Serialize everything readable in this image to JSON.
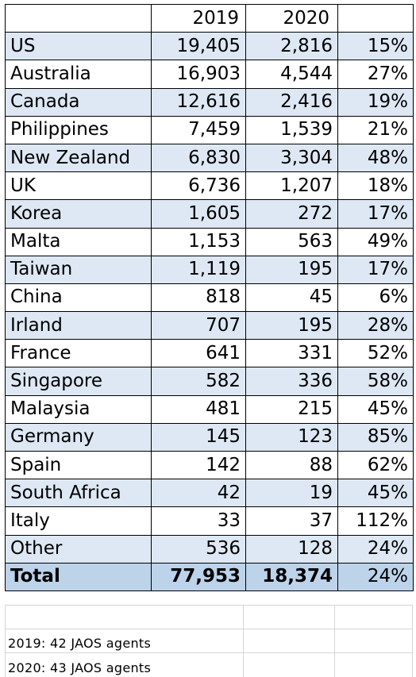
{
  "table": {
    "headers": [
      "",
      "2019",
      "2020",
      ""
    ],
    "rows": [
      {
        "country": "US",
        "y2019": "19,405",
        "y2020": "2,816",
        "pct": "15%"
      },
      {
        "country": "Australia",
        "y2019": "16,903",
        "y2020": "4,544",
        "pct": "27%"
      },
      {
        "country": "Canada",
        "y2019": "12,616",
        "y2020": "2,416",
        "pct": "19%"
      },
      {
        "country": "Philippines",
        "y2019": "7,459",
        "y2020": "1,539",
        "pct": "21%"
      },
      {
        "country": "New Zealand",
        "y2019": "6,830",
        "y2020": "3,304",
        "pct": "48%"
      },
      {
        "country": "UK",
        "y2019": "6,736",
        "y2020": "1,207",
        "pct": "18%"
      },
      {
        "country": "Korea",
        "y2019": "1,605",
        "y2020": "272",
        "pct": "17%"
      },
      {
        "country": "Malta",
        "y2019": "1,153",
        "y2020": "563",
        "pct": "49%"
      },
      {
        "country": "Taiwan",
        "y2019": "1,119",
        "y2020": "195",
        "pct": "17%"
      },
      {
        "country": "China",
        "y2019": "818",
        "y2020": "45",
        "pct": "6%"
      },
      {
        "country": "Irland",
        "y2019": "707",
        "y2020": "195",
        "pct": "28%"
      },
      {
        "country": "France",
        "y2019": "641",
        "y2020": "331",
        "pct": "52%"
      },
      {
        "country": "Singapore",
        "y2019": "582",
        "y2020": "336",
        "pct": "58%"
      },
      {
        "country": "Malaysia",
        "y2019": "481",
        "y2020": "215",
        "pct": "45%"
      },
      {
        "country": "Germany",
        "y2019": "145",
        "y2020": "123",
        "pct": "85%"
      },
      {
        "country": "Spain",
        "y2019": "142",
        "y2020": "88",
        "pct": "62%"
      },
      {
        "country": "South Africa",
        "y2019": "42",
        "y2020": "19",
        "pct": "45%"
      },
      {
        "country": "Italy",
        "y2019": "33",
        "y2020": "37",
        "pct": "112%"
      },
      {
        "country": "Other",
        "y2019": "536",
        "y2020": "128",
        "pct": "24%"
      }
    ],
    "total": {
      "country": "Total",
      "y2019": "77,953",
      "y2020": "18,374",
      "pct": "24%"
    }
  },
  "notes": [
    "2019: 42 JAOS agents",
    "2020: 43 JAOS agents"
  ],
  "colors": {
    "row_alt": "#dde8f4",
    "total_row": "#bcd3ea",
    "grid": "#d5d5d5"
  }
}
